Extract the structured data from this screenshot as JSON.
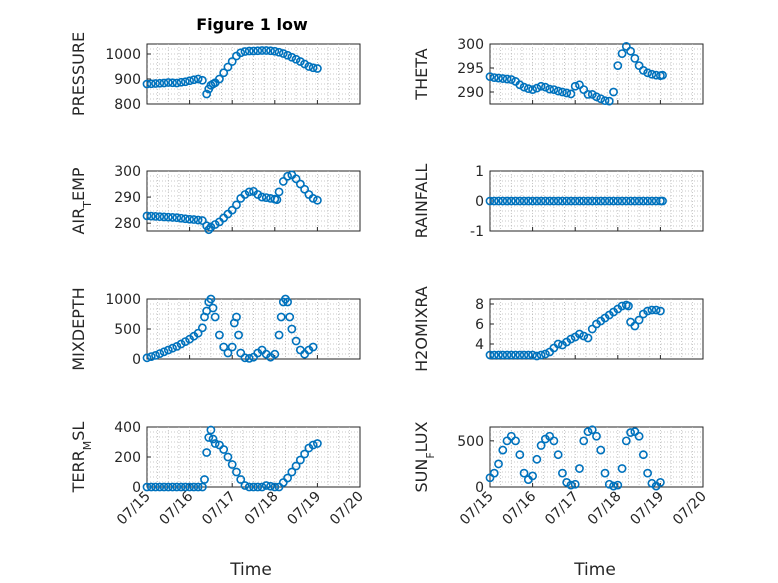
{
  "chart_data": {
    "type": "scatter",
    "marker": "circle",
    "marker_color": "#0072bd",
    "grid": "on",
    "x_ticks": [
      "07/15",
      "07/16",
      "07/17",
      "07/18",
      "07/19",
      "07/20"
    ],
    "xlabel": "Time",
    "panels": [
      {
        "id": "pressure",
        "title": "Figure 1 low",
        "ylabel": "PRESSURE",
        "ylim": [
          800,
          1040
        ],
        "yticks": [
          "800",
          "900",
          "1000"
        ],
        "ytick_values": [
          800,
          900,
          1000
        ],
        "x": [
          0,
          0.1,
          0.2,
          0.3,
          0.4,
          0.5,
          0.6,
          0.7,
          0.8,
          0.9,
          1.0,
          1.1,
          1.2,
          1.3,
          1.4,
          1.45,
          1.5,
          1.55,
          1.6,
          1.7,
          1.8,
          1.9,
          2.0,
          2.1,
          2.2,
          2.3,
          2.4,
          2.5,
          2.6,
          2.7,
          2.8,
          2.9,
          3.0,
          3.1,
          3.2,
          3.3,
          3.4,
          3.5,
          3.6,
          3.7,
          3.8,
          3.9,
          4.0
        ],
        "y": [
          880,
          881,
          882,
          883,
          884,
          886,
          885,
          884,
          887,
          889,
          893,
          897,
          900,
          895,
          840,
          860,
          875,
          880,
          885,
          900,
          925,
          948,
          970,
          992,
          1005,
          1010,
          1012,
          1012,
          1013,
          1014,
          1014,
          1013,
          1011,
          1007,
          1002,
          995,
          987,
          979,
          970,
          960,
          950,
          945,
          942
        ]
      },
      {
        "id": "theta",
        "ylabel": "THETA",
        "ylim": [
          287.5,
          300
        ],
        "yticks": [
          "290",
          "295",
          "300"
        ],
        "ytick_values": [
          290,
          295,
          300
        ],
        "x": [
          0,
          0.1,
          0.2,
          0.3,
          0.4,
          0.5,
          0.6,
          0.7,
          0.8,
          0.9,
          1.0,
          1.1,
          1.2,
          1.3,
          1.4,
          1.5,
          1.6,
          1.7,
          1.8,
          1.9,
          2.0,
          2.1,
          2.2,
          2.3,
          2.4,
          2.5,
          2.6,
          2.7,
          2.8,
          2.9,
          3.0,
          3.1,
          3.2,
          3.3,
          3.4,
          3.5,
          3.6,
          3.7,
          3.8,
          3.9,
          4.0,
          4.05
        ],
        "y": [
          293.2,
          293,
          292.9,
          292.8,
          292.7,
          292.6,
          292.2,
          291.5,
          291,
          290.7,
          290.5,
          290.8,
          291.2,
          291,
          290.6,
          290.5,
          290.2,
          290,
          289.8,
          289.6,
          291.2,
          291.5,
          290.5,
          289.5,
          289.5,
          289,
          288.6,
          288.2,
          288.1,
          290,
          295.5,
          298,
          299.5,
          298.5,
          297,
          295.5,
          294.5,
          294,
          293.7,
          293.5,
          293.4,
          293.5
        ]
      },
      {
        "id": "air-temp",
        "ylabel": "AIR_TEMP",
        "ylim": [
          277,
          300
        ],
        "yticks": [
          "280",
          "290",
          "300"
        ],
        "ytick_values": [
          280,
          290,
          300
        ],
        "x": [
          0,
          0.1,
          0.2,
          0.3,
          0.4,
          0.5,
          0.6,
          0.7,
          0.8,
          0.9,
          1.0,
          1.1,
          1.2,
          1.3,
          1.4,
          1.45,
          1.5,
          1.6,
          1.7,
          1.8,
          1.9,
          2.0,
          2.1,
          2.2,
          2.3,
          2.4,
          2.5,
          2.6,
          2.7,
          2.8,
          2.9,
          3.0,
          3.05,
          3.1,
          3.2,
          3.3,
          3.4,
          3.5,
          3.6,
          3.7,
          3.8,
          3.9,
          4.0
        ],
        "y": [
          282.8,
          282.7,
          282.6,
          282.5,
          282.4,
          282.3,
          282.2,
          282.1,
          281.9,
          281.7,
          281.5,
          281.4,
          281.2,
          281,
          279,
          277.5,
          278.5,
          279.5,
          280.5,
          282,
          283.5,
          285,
          287,
          289.5,
          291,
          292,
          292.2,
          291,
          290,
          289.8,
          289.5,
          289.2,
          289,
          292,
          296,
          298,
          298.5,
          297,
          295,
          293,
          291,
          289.5,
          288.8
        ]
      },
      {
        "id": "rainfall",
        "ylabel": "RAINFALL",
        "ylim": [
          -1,
          1
        ],
        "yticks": [
          "-1",
          "0",
          "1"
        ],
        "ytick_values": [
          -1,
          0,
          1
        ],
        "x": [
          0,
          0.1,
          0.2,
          0.3,
          0.4,
          0.5,
          0.6,
          0.7,
          0.8,
          0.9,
          1.0,
          1.1,
          1.2,
          1.3,
          1.4,
          1.5,
          1.6,
          1.7,
          1.8,
          1.9,
          2.0,
          2.1,
          2.2,
          2.3,
          2.4,
          2.5,
          2.6,
          2.7,
          2.8,
          2.9,
          3.0,
          3.1,
          3.2,
          3.3,
          3.4,
          3.5,
          3.6,
          3.7,
          3.8,
          3.9,
          4.0,
          4.05
        ],
        "y": [
          0,
          0,
          0,
          0,
          0,
          0,
          0,
          0,
          0,
          0,
          0,
          0,
          0,
          0,
          0,
          0,
          0,
          0,
          0,
          0,
          0,
          0,
          0,
          0,
          0,
          0,
          0,
          0,
          0,
          0,
          0,
          0,
          0,
          0,
          0,
          0,
          0,
          0,
          0,
          0,
          0,
          0
        ]
      },
      {
        "id": "mixdepth",
        "ylabel": "MIXDEPTH",
        "ylim": [
          0,
          1000
        ],
        "yticks": [
          "0",
          "500",
          "1000"
        ],
        "ytick_values": [
          0,
          500,
          1000
        ],
        "x": [
          0,
          0.1,
          0.2,
          0.3,
          0.4,
          0.5,
          0.6,
          0.7,
          0.8,
          0.9,
          1.0,
          1.1,
          1.2,
          1.3,
          1.35,
          1.4,
          1.45,
          1.5,
          1.55,
          1.6,
          1.7,
          1.8,
          1.9,
          2.0,
          2.05,
          2.1,
          2.15,
          2.2,
          2.3,
          2.4,
          2.5,
          2.6,
          2.7,
          2.8,
          2.9,
          3.0,
          3.1,
          3.15,
          3.2,
          3.25,
          3.3,
          3.35,
          3.4,
          3.5,
          3.6,
          3.7,
          3.8,
          3.9
        ],
        "y": [
          20,
          40,
          60,
          90,
          120,
          150,
          180,
          210,
          250,
          290,
          330,
          380,
          430,
          520,
          700,
          800,
          950,
          1000,
          850,
          700,
          400,
          200,
          100,
          200,
          600,
          700,
          400,
          100,
          20,
          10,
          30,
          100,
          150,
          80,
          30,
          80,
          400,
          700,
          950,
          1000,
          950,
          700,
          500,
          300,
          150,
          80,
          150,
          200
        ]
      },
      {
        "id": "h2omixra",
        "ylabel": "H2OMIXRA",
        "ylim": [
          2.5,
          8.5
        ],
        "yticks": [
          "4",
          "6",
          "8"
        ],
        "ytick_values": [
          4,
          6,
          8
        ],
        "x": [
          0,
          0.1,
          0.2,
          0.3,
          0.4,
          0.5,
          0.6,
          0.7,
          0.8,
          0.9,
          1.0,
          1.1,
          1.2,
          1.3,
          1.4,
          1.5,
          1.6,
          1.7,
          1.8,
          1.9,
          2.0,
          2.1,
          2.2,
          2.3,
          2.4,
          2.5,
          2.6,
          2.7,
          2.8,
          2.9,
          3.0,
          3.1,
          3.2,
          3.25,
          3.3,
          3.4,
          3.5,
          3.6,
          3.7,
          3.8,
          3.9,
          4.0
        ],
        "y": [
          2.9,
          2.9,
          2.9,
          2.9,
          2.9,
          2.9,
          2.9,
          2.9,
          2.9,
          2.9,
          2.9,
          2.8,
          2.9,
          3,
          3.2,
          3.6,
          4.0,
          3.9,
          4.2,
          4.5,
          4.7,
          5.0,
          4.8,
          4.6,
          5.5,
          6.0,
          6.3,
          6.6,
          6.9,
          7.2,
          7.5,
          7.8,
          7.9,
          7.8,
          6.2,
          5.8,
          6.4,
          7.0,
          7.3,
          7.4,
          7.4,
          7.3
        ]
      },
      {
        "id": "terr-msl",
        "ylabel": "TERR_MSL",
        "ylim": [
          0,
          400
        ],
        "yticks": [
          "0",
          "200",
          "400"
        ],
        "ytick_values": [
          0,
          200,
          400
        ],
        "x": [
          0,
          0.1,
          0.2,
          0.3,
          0.4,
          0.5,
          0.6,
          0.7,
          0.8,
          0.9,
          1.0,
          1.1,
          1.2,
          1.3,
          1.35,
          1.4,
          1.45,
          1.5,
          1.55,
          1.6,
          1.7,
          1.8,
          1.9,
          2.0,
          2.1,
          2.2,
          2.3,
          2.4,
          2.5,
          2.6,
          2.7,
          2.8,
          2.9,
          3.0,
          3.1,
          3.2,
          3.3,
          3.4,
          3.5,
          3.6,
          3.7,
          3.8,
          3.9,
          4.0
        ],
        "y": [
          0,
          0,
          0,
          0,
          0,
          0,
          0,
          0,
          0,
          0,
          0,
          0,
          0,
          0,
          50,
          230,
          330,
          380,
          320,
          290,
          280,
          250,
          200,
          150,
          100,
          50,
          10,
          0,
          0,
          0,
          0,
          10,
          5,
          0,
          0,
          30,
          60,
          100,
          140,
          180,
          220,
          260,
          280,
          290
        ]
      },
      {
        "id": "sun-flux",
        "ylabel": "SUN_FLUX",
        "ylim": [
          0,
          650
        ],
        "yticks": [
          "0",
          "500"
        ],
        "ytick_values": [
          0,
          500
        ],
        "x": [
          0,
          0.1,
          0.2,
          0.3,
          0.4,
          0.5,
          0.6,
          0.7,
          0.8,
          0.9,
          1.0,
          1.1,
          1.2,
          1.3,
          1.4,
          1.5,
          1.6,
          1.7,
          1.8,
          1.9,
          2.0,
          2.1,
          2.2,
          2.3,
          2.4,
          2.5,
          2.6,
          2.7,
          2.8,
          2.9,
          3.0,
          3.1,
          3.2,
          3.3,
          3.4,
          3.5,
          3.6,
          3.7,
          3.8,
          3.9,
          4.0
        ],
        "y": [
          100,
          150,
          250,
          400,
          500,
          550,
          500,
          350,
          150,
          80,
          120,
          300,
          450,
          520,
          550,
          500,
          350,
          150,
          50,
          20,
          30,
          200,
          500,
          600,
          620,
          550,
          400,
          150,
          30,
          10,
          20,
          200,
          500,
          590,
          600,
          550,
          350,
          150,
          40,
          10,
          50
        ]
      }
    ]
  }
}
